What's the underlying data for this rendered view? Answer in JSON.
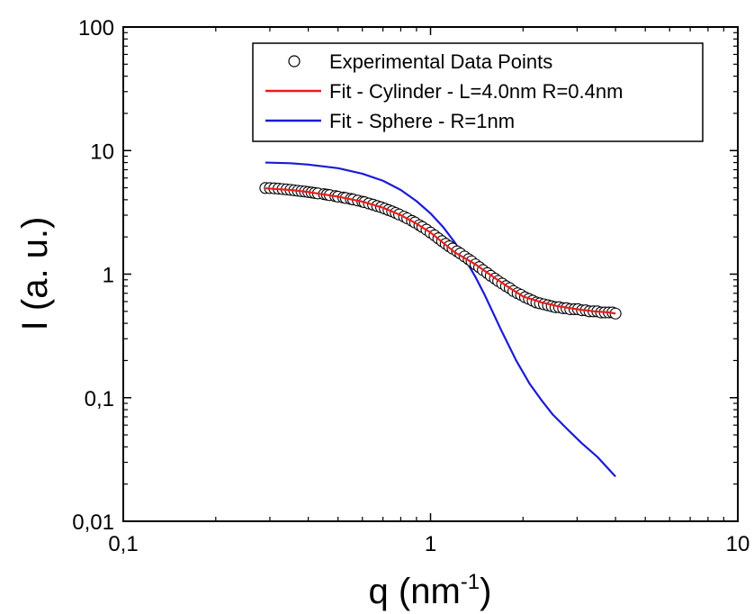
{
  "chart_data": {
    "type": "line",
    "xscale": "log",
    "yscale": "log",
    "xlim": [
      0.1,
      10
    ],
    "ylim": [
      0.01,
      100
    ],
    "x_ticks": [
      0.1,
      1,
      10
    ],
    "x_tick_labels": [
      "0,1",
      "1",
      "10"
    ],
    "y_ticks": [
      0.01,
      0.1,
      1,
      10,
      100
    ],
    "y_tick_labels": [
      "0,01",
      "0,1",
      "1",
      "10",
      "100"
    ],
    "xlabel": "q (nm",
    "xlabel_sup": "-1",
    "xlabel_end": ")",
    "ylabel": "I (a. u.)",
    "legend_position": "top-right",
    "grid": false,
    "series": [
      {
        "name": "Experimental Data Points",
        "style": "open-circle",
        "color": "#000000",
        "x": [
          0.29,
          0.3,
          0.31,
          0.32,
          0.33,
          0.34,
          0.35,
          0.36,
          0.37,
          0.38,
          0.39,
          0.4,
          0.41,
          0.42,
          0.43,
          0.45,
          0.46,
          0.47,
          0.49,
          0.5,
          0.52,
          0.53,
          0.55,
          0.56,
          0.58,
          0.6,
          0.61,
          0.63,
          0.65,
          0.67,
          0.69,
          0.71,
          0.73,
          0.75,
          0.77,
          0.79,
          0.82,
          0.84,
          0.87,
          0.89,
          0.92,
          0.94,
          0.97,
          1.0,
          1.03,
          1.06,
          1.09,
          1.12,
          1.15,
          1.18,
          1.22,
          1.25,
          1.29,
          1.33,
          1.36,
          1.4,
          1.44,
          1.48,
          1.53,
          1.57,
          1.62,
          1.66,
          1.71,
          1.76,
          1.81,
          1.86,
          1.92,
          1.97,
          2.03,
          2.09,
          2.15,
          2.21,
          2.27,
          2.34,
          2.41,
          2.48,
          2.55,
          2.62,
          2.7,
          2.77,
          2.85,
          2.94,
          3.02,
          3.11,
          3.2,
          3.29,
          3.39,
          3.49,
          3.59,
          3.69,
          3.8,
          3.91,
          4.0
        ],
        "y": [
          4.98,
          4.97,
          4.95,
          4.92,
          4.88,
          4.85,
          4.81,
          4.77,
          4.73,
          4.69,
          4.66,
          4.62,
          4.58,
          4.54,
          4.5,
          4.44,
          4.4,
          4.36,
          4.28,
          4.24,
          4.17,
          4.13,
          4.06,
          4.02,
          3.94,
          3.86,
          3.82,
          3.73,
          3.65,
          3.56,
          3.48,
          3.39,
          3.3,
          3.22,
          3.13,
          3.04,
          2.92,
          2.83,
          2.7,
          2.62,
          2.49,
          2.41,
          2.29,
          2.17,
          2.06,
          1.95,
          1.85,
          1.76,
          1.68,
          1.61,
          1.53,
          1.47,
          1.39,
          1.32,
          1.27,
          1.2,
          1.14,
          1.08,
          1.02,
          0.97,
          0.92,
          0.88,
          0.84,
          0.8,
          0.77,
          0.73,
          0.7,
          0.68,
          0.65,
          0.63,
          0.61,
          0.59,
          0.58,
          0.57,
          0.56,
          0.55,
          0.54,
          0.54,
          0.53,
          0.53,
          0.52,
          0.52,
          0.52,
          0.51,
          0.51,
          0.5,
          0.5,
          0.5,
          0.49,
          0.49,
          0.49,
          0.49,
          0.48
        ]
      },
      {
        "name": "Fit - Cylinder - L=4.0nm R=0.4nm",
        "style": "line",
        "color": "#ee1c1c",
        "x": [
          0.29,
          0.35,
          0.4,
          0.5,
          0.6,
          0.7,
          0.8,
          0.9,
          1.0,
          1.2,
          1.4,
          1.6,
          1.8,
          2.0,
          2.3,
          2.6,
          3.0,
          3.4,
          3.8,
          4.0
        ],
        "y": [
          4.95,
          4.8,
          4.62,
          4.24,
          3.86,
          3.45,
          3.0,
          2.56,
          2.17,
          1.5,
          1.2,
          0.95,
          0.78,
          0.66,
          0.59,
          0.55,
          0.52,
          0.5,
          0.49,
          0.48
        ]
      },
      {
        "name": "Fit - Sphere - R=1nm",
        "style": "line",
        "color": "#1b1bd6",
        "x": [
          0.29,
          0.35,
          0.4,
          0.5,
          0.6,
          0.7,
          0.8,
          0.9,
          1.0,
          1.1,
          1.2,
          1.3,
          1.4,
          1.5,
          1.7,
          1.9,
          2.1,
          2.3,
          2.5,
          2.8,
          3.1,
          3.5,
          4.0
        ],
        "y": [
          8.0,
          7.9,
          7.7,
          7.2,
          6.5,
          5.7,
          4.8,
          3.9,
          3.1,
          2.4,
          1.8,
          1.3,
          0.95,
          0.68,
          0.35,
          0.2,
          0.13,
          0.095,
          0.073,
          0.055,
          0.043,
          0.033,
          0.023
        ]
      }
    ]
  }
}
